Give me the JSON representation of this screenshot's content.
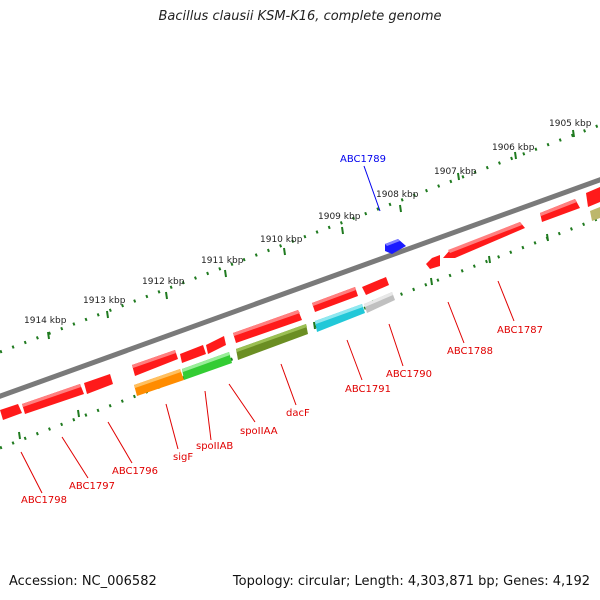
{
  "title": "Bacillus clausii KSM-K16, complete genome",
  "footer": {
    "accession": "Accession: NC_006582",
    "topology": "Topology: circular; Length: 4,303,871 bp; Genes: 4,192"
  },
  "scale_ticks": [
    "1905 kbp",
    "1906 kbp",
    "1907 kbp",
    "1908 kbp",
    "1909 kbp",
    "1910 kbp",
    "1911 kbp",
    "1912 kbp",
    "1913 kbp",
    "1914 kbp"
  ],
  "genes": [
    {
      "label": "ABC1789",
      "color": "#1a1aff",
      "strand": "forward"
    },
    {
      "label": "ABC1787",
      "color": "#ff1a1a",
      "strand": "reverse"
    },
    {
      "label": "ABC1788",
      "color": "#ff1a1a",
      "strand": "reverse"
    },
    {
      "label": "ABC1790",
      "color": "#c0c0c0",
      "strand": "reverse"
    },
    {
      "label": "ABC1791",
      "color": "#22c8d8",
      "strand": "reverse"
    },
    {
      "label": "dacF",
      "color": "#6b8e23",
      "strand": "reverse"
    },
    {
      "label": "spoIIAA",
      "color": "#ff1a1a",
      "strand": "reverse"
    },
    {
      "label": "spoIIAB",
      "color": "#33cc33",
      "strand": "reverse"
    },
    {
      "label": "sigF",
      "color": "#ff8c00",
      "strand": "reverse"
    },
    {
      "label": "ABC1796",
      "color": "#ff1a1a",
      "strand": "reverse"
    },
    {
      "label": "ABC1797",
      "color": "#ff1a1a",
      "strand": "reverse"
    },
    {
      "label": "ABC1798",
      "color": "#ff1a1a",
      "strand": "reverse"
    }
  ],
  "colors": {
    "backbone": "#7a7a7a",
    "scale": "#1f7a1f",
    "gene_label": "#e00000",
    "highlight_label": "#0000ee"
  }
}
